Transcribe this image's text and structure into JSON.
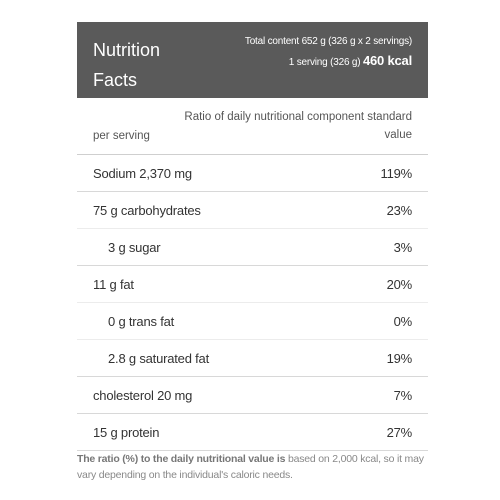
{
  "header": {
    "title": "Nutrition Facts",
    "total_content": "Total content 652 g (326 g x 2 servings)",
    "serving": "1 serving (326 g)",
    "calories": "460 kcal"
  },
  "columns": {
    "left": "per serving",
    "right": "Ratio of daily nutritional component standard value"
  },
  "table": {
    "rows": [
      [
        "Sodium 2,370 mg",
        "119%"
      ],
      [
        "75 g carbohydrates",
        "23%"
      ],
      [
        "3 g sugar",
        "3%"
      ],
      [
        "11 g fat",
        "20%"
      ],
      [
        "0 g trans fat",
        "0%"
      ],
      [
        "2.8 g saturated fat",
        "19%"
      ],
      [
        "cholesterol 20 mg",
        "7%"
      ],
      [
        "15 g protein",
        "27%"
      ]
    ]
  },
  "footnote": {
    "bold": "The ratio (%) to the daily nutritional value is",
    "text": "based on 2,000 kcal, so it may vary depending on the individual's caloric needs."
  }
}
